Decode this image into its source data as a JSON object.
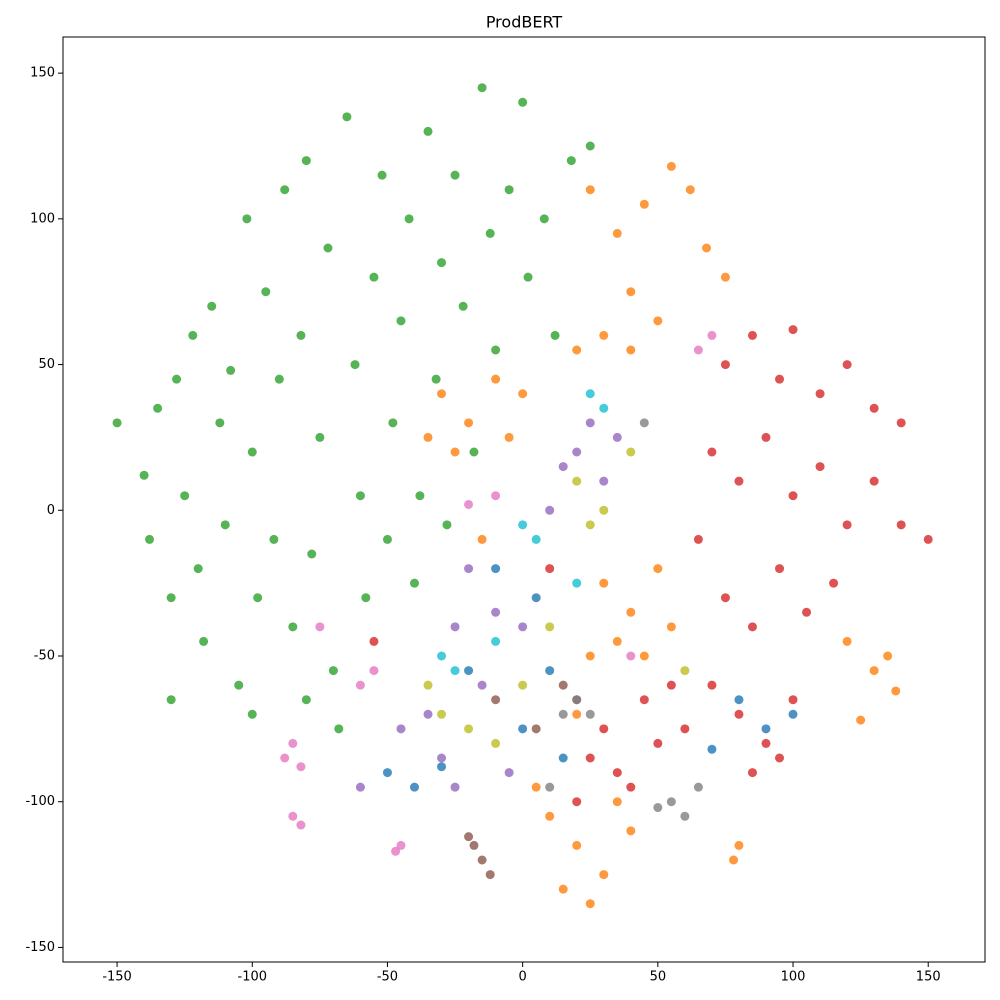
{
  "chart_data": {
    "type": "scatter",
    "title": "ProdBERT",
    "xlim": [
      -170,
      171
    ],
    "ylim": [
      -155,
      162.4
    ],
    "xticks": [
      -150,
      -100,
      -50,
      0,
      50,
      100,
      150
    ],
    "yticks": [
      -150,
      -100,
      -50,
      0,
      50,
      100,
      150
    ],
    "series": [
      {
        "color": "#2ca02c",
        "x": [
          -150,
          -140,
          -138,
          -135,
          -130,
          -128,
          -125,
          -122,
          -120,
          -118,
          -115,
          -112,
          -110,
          -108,
          -105,
          -102,
          -100,
          -98,
          -95,
          -92,
          -90,
          -88,
          -85,
          -82,
          -80,
          -78,
          -75,
          -72,
          -70,
          -68,
          -65,
          -62,
          -60,
          -58,
          -55,
          -52,
          -50,
          -48,
          -45,
          -42,
          -40,
          -38,
          -35,
          -32,
          -30,
          -28,
          -25,
          -22,
          -18,
          -15,
          -12,
          -10,
          -5,
          0,
          2,
          8,
          12,
          18,
          25,
          -130,
          -100,
          -80
        ],
        "y": [
          30,
          12,
          -10,
          35,
          -30,
          45,
          5,
          60,
          -20,
          -45,
          70,
          30,
          -5,
          48,
          -60,
          100,
          20,
          -30,
          75,
          -10,
          45,
          110,
          -40,
          60,
          120,
          -15,
          25,
          90,
          -55,
          -75,
          135,
          50,
          5,
          -30,
          80,
          115,
          -10,
          30,
          65,
          100,
          -25,
          5,
          130,
          45,
          85,
          -5,
          115,
          70,
          20,
          145,
          95,
          55,
          110,
          140,
          80,
          100,
          60,
          120,
          125,
          -65,
          -70,
          -65
        ]
      },
      {
        "color": "#ff7f0e",
        "x": [
          25,
          35,
          45,
          55,
          62,
          68,
          75,
          40,
          30,
          20,
          40,
          50,
          -30,
          -20,
          -10,
          0,
          -5,
          -25,
          -35,
          -15,
          30,
          40,
          50,
          35,
          45,
          25,
          55,
          10,
          20,
          30,
          40,
          15,
          25,
          35,
          5,
          120,
          130,
          138,
          125,
          135,
          80,
          78,
          20
        ],
        "y": [
          110,
          95,
          105,
          118,
          110,
          90,
          80,
          75,
          60,
          55,
          55,
          65,
          40,
          30,
          45,
          40,
          25,
          20,
          25,
          -10,
          -25,
          -35,
          -20,
          -45,
          -50,
          -50,
          -40,
          -105,
          -115,
          -125,
          -110,
          -130,
          -135,
          -100,
          -95,
          -45,
          -55,
          -62,
          -72,
          -50,
          -115,
          -120,
          -70
        ]
      },
      {
        "color": "#d62728",
        "x": [
          75,
          85,
          95,
          100,
          110,
          120,
          130,
          140,
          70,
          80,
          90,
          100,
          110,
          120,
          130,
          140,
          150,
          65,
          75,
          85,
          95,
          105,
          115,
          70,
          80,
          90,
          100,
          60,
          50,
          45,
          30,
          25,
          35,
          85,
          95,
          10,
          -55,
          20,
          40,
          55
        ],
        "y": [
          50,
          60,
          45,
          62,
          40,
          50,
          35,
          30,
          20,
          10,
          25,
          5,
          15,
          -5,
          10,
          -5,
          -10,
          -10,
          -30,
          -40,
          -20,
          -35,
          -25,
          -60,
          -70,
          -80,
          -65,
          -75,
          -80,
          -65,
          -75,
          -85,
          -90,
          -90,
          -85,
          -20,
          -45,
          -100,
          -95,
          -60
        ]
      },
      {
        "color": "#1f77b4",
        "x": [
          -50,
          -40,
          -30,
          0,
          10,
          15,
          80,
          90,
          -10,
          5,
          -20,
          70,
          100
        ],
        "y": [
          -90,
          -95,
          -88,
          -75,
          -55,
          -85,
          -65,
          -75,
          -20,
          -30,
          -55,
          -82,
          -70
        ]
      },
      {
        "color": "#9467bd",
        "x": [
          -20,
          -10,
          0,
          -25,
          -35,
          -45,
          -60,
          -30,
          -15,
          20,
          30,
          25,
          10,
          15,
          35,
          -5,
          -25
        ],
        "y": [
          -20,
          -35,
          -40,
          -40,
          -70,
          -75,
          -95,
          -85,
          -60,
          20,
          10,
          30,
          0,
          15,
          25,
          -90,
          -95
        ]
      },
      {
        "color": "#8c564b",
        "x": [
          -18,
          -15,
          -20,
          -12,
          15,
          20,
          5,
          -10
        ],
        "y": [
          -115,
          -120,
          -112,
          -125,
          -60,
          -65,
          -75,
          -65
        ]
      },
      {
        "color": "#e377c2",
        "x": [
          -45,
          -47,
          -85,
          -88,
          -82,
          -85,
          -82,
          -60,
          -55,
          -20,
          -10,
          70,
          65,
          40,
          -75
        ],
        "y": [
          -115,
          -117,
          -80,
          -85,
          -88,
          -105,
          -108,
          -60,
          -55,
          2,
          5,
          60,
          55,
          -50,
          -40
        ]
      },
      {
        "color": "#7f7f7f",
        "x": [
          20,
          25,
          15,
          55,
          60,
          65,
          50,
          45,
          10
        ],
        "y": [
          -65,
          -70,
          -70,
          -100,
          -105,
          -95,
          -102,
          30,
          -95
        ]
      },
      {
        "color": "#bcbd22",
        "x": [
          20,
          30,
          25,
          40,
          -20,
          -10,
          0,
          -30,
          10,
          60,
          -35
        ],
        "y": [
          10,
          0,
          -5,
          20,
          -75,
          -80,
          -60,
          -70,
          -40,
          -55,
          -60
        ]
      },
      {
        "color": "#17becf",
        "x": [
          30,
          25,
          5,
          0,
          -30,
          -25,
          -10,
          20
        ],
        "y": [
          35,
          40,
          -10,
          -5,
          -50,
          -55,
          -45,
          -25
        ]
      }
    ]
  }
}
